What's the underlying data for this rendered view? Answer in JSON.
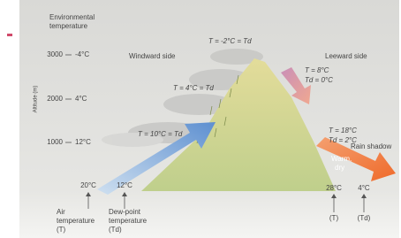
{
  "environmental_label": [
    "Environmental",
    "temperature"
  ],
  "axis_title": "Altitude (m)",
  "altitude_ticks": [
    {
      "altitude": "3000",
      "temperature": "-4°C"
    },
    {
      "altitude": "2000",
      "temperature": "4°C"
    },
    {
      "altitude": "1000",
      "temperature": "12°C"
    }
  ],
  "sides": {
    "windward": "Windward side",
    "leeward": "Leeward side"
  },
  "windward_labels": [
    "T = -2°C = Td",
    "T = 4°C = Td",
    "T = 10°C = Td"
  ],
  "leeward_labels": [
    [
      "T = 8°C",
      "Td = 0°C"
    ],
    [
      "T = 18°C",
      "Td = 2°C"
    ]
  ],
  "rain_shadow": "Rain shadow",
  "warm_dry": [
    "Warm,",
    "dry"
  ],
  "bottom_values": {
    "windward_air": "20°C",
    "windward_dew": "12°C",
    "leeward_air": "28°C",
    "leeward_dew": "4°C"
  },
  "bottom_labels": {
    "air": [
      "Air",
      "temperature",
      "(T)"
    ],
    "dew": [
      "Dew-point",
      "temperature",
      "(Td)"
    ],
    "leeward_air": "(T)",
    "leeward_dew": "(Td)"
  }
}
